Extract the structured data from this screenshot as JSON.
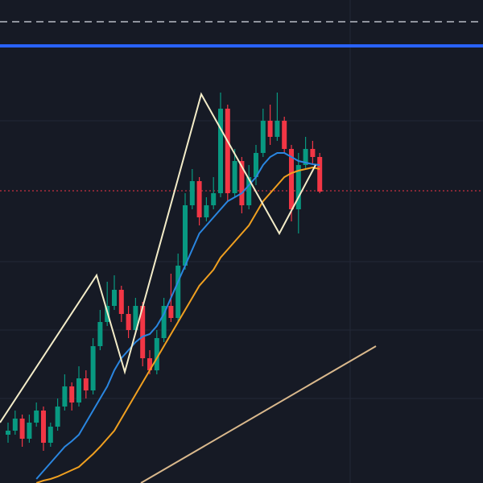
{
  "chart_data": {
    "type": "candlestick",
    "ylim": [
      0,
      600
    ],
    "up_color": "#089981",
    "down_color": "#f23645",
    "open": [
      60,
      65,
      80,
      55,
      75,
      90,
      50,
      70,
      95,
      120,
      100,
      130,
      115,
      170,
      200,
      220,
      240,
      210,
      190,
      220,
      155,
      140,
      180,
      220,
      205,
      270,
      345,
      375,
      330,
      345,
      360,
      465,
      360,
      400,
      345,
      380,
      410,
      450,
      430,
      450,
      415,
      340,
      395,
      415,
      405
    ],
    "close": [
      65,
      80,
      55,
      75,
      90,
      50,
      70,
      95,
      120,
      100,
      130,
      115,
      170,
      200,
      220,
      240,
      210,
      190,
      220,
      155,
      140,
      180,
      220,
      205,
      270,
      345,
      375,
      330,
      345,
      360,
      465,
      360,
      400,
      345,
      380,
      410,
      450,
      430,
      450,
      415,
      340,
      395,
      415,
      405,
      362
    ],
    "high": [
      75,
      90,
      85,
      85,
      100,
      95,
      75,
      105,
      135,
      125,
      145,
      140,
      180,
      215,
      250,
      258,
      245,
      220,
      230,
      225,
      165,
      190,
      230,
      260,
      285,
      360,
      390,
      380,
      355,
      380,
      485,
      470,
      415,
      405,
      395,
      420,
      465,
      470,
      485,
      455,
      420,
      410,
      430,
      425,
      410
    ],
    "low": [
      50,
      60,
      45,
      50,
      70,
      40,
      45,
      65,
      90,
      90,
      95,
      105,
      110,
      165,
      195,
      215,
      200,
      180,
      185,
      145,
      135,
      135,
      175,
      200,
      200,
      265,
      340,
      320,
      325,
      340,
      355,
      350,
      355,
      335,
      340,
      370,
      405,
      420,
      425,
      410,
      325,
      310,
      390,
      395,
      360
    ],
    "series": [
      {
        "color": "#2a86e0",
        "values": [
          null,
          null,
          null,
          null,
          5,
          15,
          25,
          35,
          45,
          52,
          60,
          75,
          90,
          105,
          120,
          140,
          155,
          165,
          175,
          182,
          185,
          195,
          210,
          230,
          250,
          270,
          290,
          310,
          320,
          330,
          340,
          350,
          355,
          360,
          370,
          380,
          395,
          405,
          410,
          410,
          405,
          400,
          398,
          396,
          395
        ]
      },
      {
        "color": "#f0a020",
        "values": [
          null,
          null,
          null,
          null,
          0,
          3,
          5,
          8,
          12,
          16,
          20,
          28,
          36,
          45,
          55,
          65,
          80,
          95,
          110,
          125,
          140,
          155,
          170,
          185,
          200,
          215,
          230,
          245,
          255,
          265,
          280,
          290,
          300,
          310,
          320,
          335,
          350,
          360,
          370,
          380,
          385,
          388,
          390,
          392,
          390
        ]
      }
    ]
  }
}
